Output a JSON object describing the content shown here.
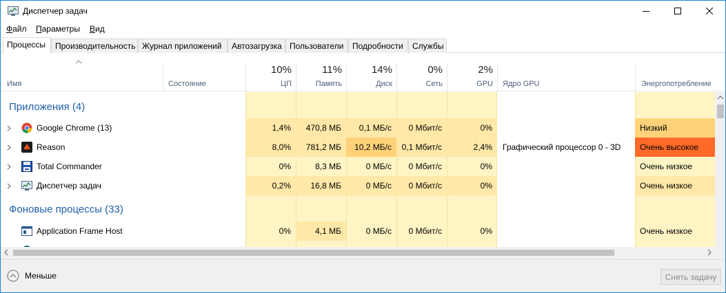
{
  "window": {
    "title": "Диспетчер задач"
  },
  "menu": [
    "Файл",
    "Параметры",
    "Вид"
  ],
  "tabs": [
    "Процессы",
    "Производительность",
    "Журнал приложений",
    "Автозагрузка",
    "Пользователи",
    "Подробности",
    "Службы"
  ],
  "active_tab": "Процессы",
  "columns": {
    "name": "Имя",
    "status": "Состояние",
    "cpu": {
      "pct": "10%",
      "label": "ЦП"
    },
    "memory": {
      "pct": "11%",
      "label": "Память"
    },
    "disk": {
      "pct": "14%",
      "label": "Диск"
    },
    "network": {
      "pct": "0%",
      "label": "Сеть"
    },
    "gpu": {
      "pct": "2%",
      "label": "GPU"
    },
    "gpu_engine": "Ядро GPU",
    "power": "Энергопотребление"
  },
  "groups": {
    "apps": "Приложения (4)",
    "background": "Фоновые процессы (33)"
  },
  "apps": [
    {
      "name": "Google Chrome (13)",
      "icon": "chrome-icon",
      "cpu": "1,4%",
      "memory": "470,8 МБ",
      "disk": "0,1 МБ/с",
      "network": "0 Мбит/с",
      "gpu": "0%",
      "gpu_engine": "",
      "power": "Низкий"
    },
    {
      "name": "Reason",
      "icon": "reason-icon",
      "cpu": "8,0%",
      "memory": "781,2 МБ",
      "disk": "10,2 МБ/с",
      "network": "0,1 Мбит/с",
      "gpu": "2,4%",
      "gpu_engine": "Графический процессор 0 - 3D",
      "power": "Очень высокое"
    },
    {
      "name": "Total Commander",
      "icon": "total-commander-icon",
      "cpu": "0%",
      "memory": "8,3 МБ",
      "disk": "0 МБ/с",
      "network": "0 Мбит/с",
      "gpu": "0%",
      "gpu_engine": "",
      "power": "Очень низкое"
    },
    {
      "name": "Диспетчер задач",
      "icon": "task-manager-icon",
      "cpu": "0,2%",
      "memory": "16,8 МБ",
      "disk": "0 МБ/с",
      "network": "0 Мбит/с",
      "gpu": "0%",
      "gpu_engine": "",
      "power": "Очень низкое"
    }
  ],
  "background": [
    {
      "name": "Application Frame Host",
      "icon": "app-frame-host-icon",
      "cpu": "0%",
      "memory": "4,1 МБ",
      "disk": "0 МБ/с",
      "network": "0 Мбит/с",
      "gpu": "0%",
      "gpu_engine": "",
      "power": "Очень низкое"
    }
  ],
  "footer": {
    "less_label": "Меньше",
    "end_task_label": "Снять задачу"
  },
  "colors": {
    "heat_light": "#fff4c4",
    "heat_mid": "#ffe8a8",
    "heat_high": "#ffd279",
    "power_high": "#ff6a28",
    "group_title": "#1f5fa8"
  }
}
